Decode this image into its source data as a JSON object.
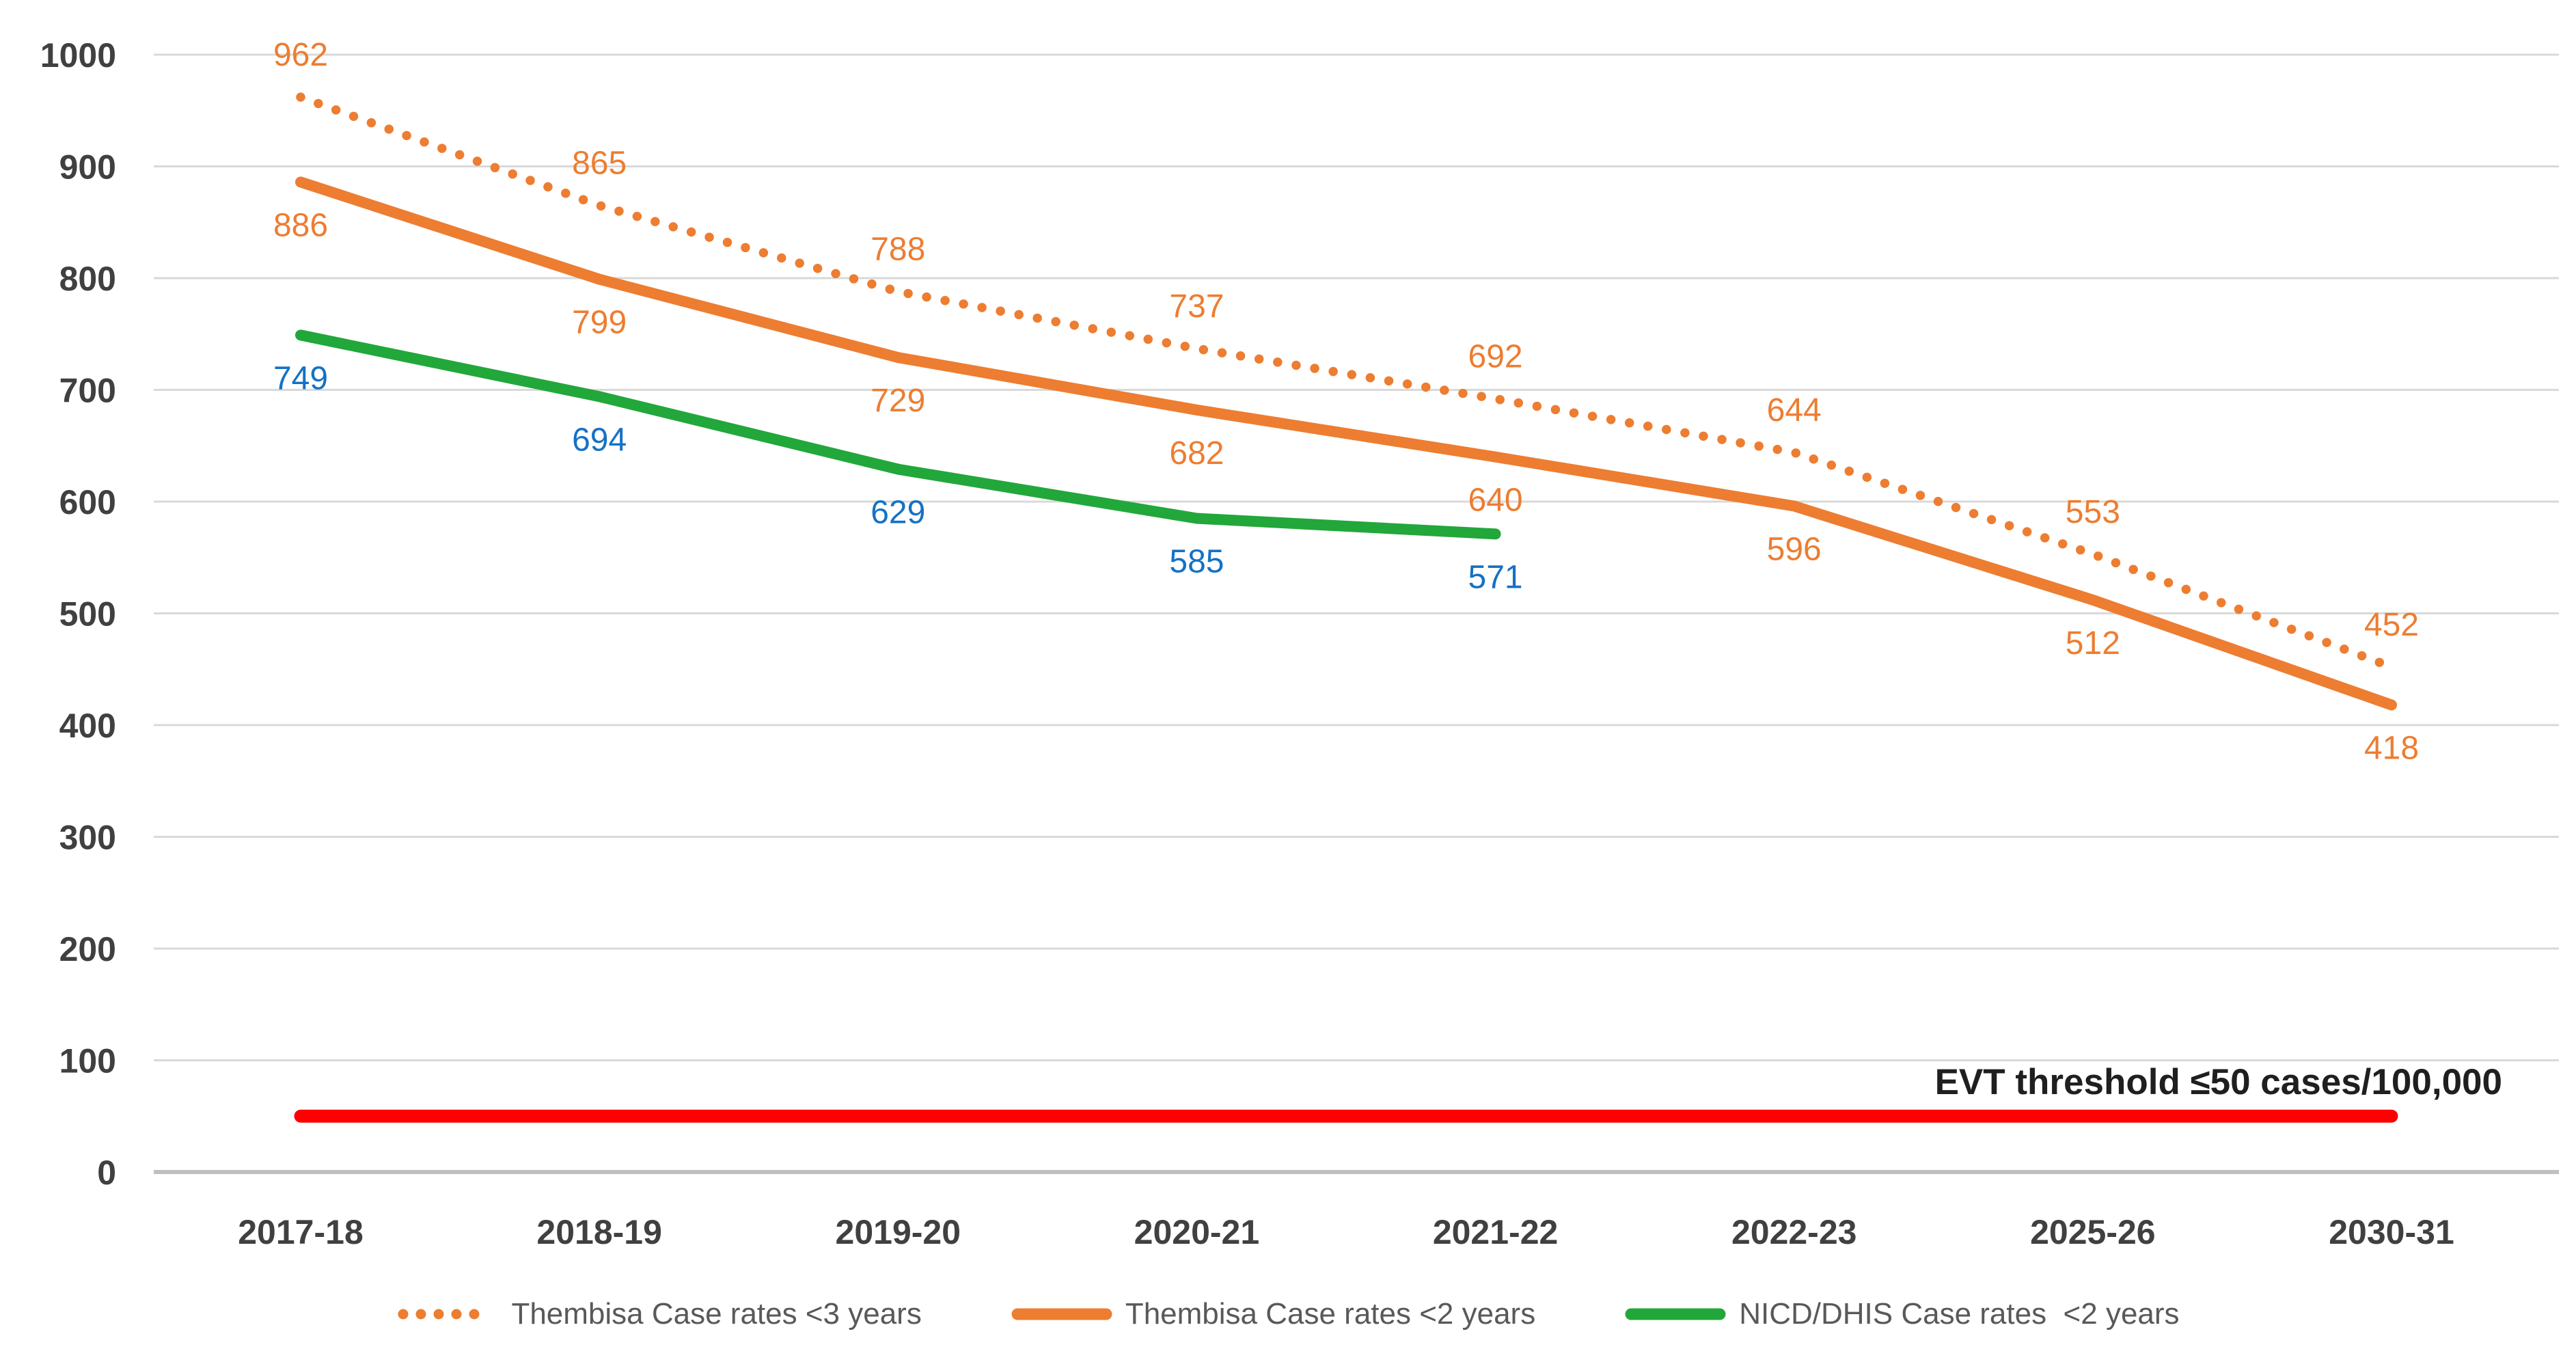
{
  "chart_data": {
    "type": "line",
    "title": "",
    "categories": [
      "2017-18",
      "2018-19",
      "2019-20",
      "2020-21",
      "2021-22",
      "2022-23",
      "2025-26",
      "2030-31"
    ],
    "series": [
      {
        "name": "Thembisa Case rates <3 years",
        "style": "dotted",
        "color": "#ED7D31",
        "label_color": "#ED7D31",
        "label_position": "above",
        "values": [
          962,
          865,
          788,
          737,
          692,
          644,
          553,
          452
        ]
      },
      {
        "name": "Thembisa Case rates <2 years",
        "style": "solid",
        "color": "#ED7D31",
        "label_color": "#ED7D31",
        "label_position": "below",
        "values": [
          886,
          799,
          729,
          682,
          640,
          596,
          512,
          418
        ]
      },
      {
        "name": "NICD/DHIS Case rates  <2 years",
        "style": "solid",
        "color": "#22A73A",
        "label_color": "#1571C5",
        "label_position": "below",
        "values": [
          749,
          694,
          629,
          585,
          571
        ]
      }
    ],
    "threshold": {
      "value": 50,
      "color": "#FE0000",
      "label": "EVT threshold ≤50 cases/100,000"
    },
    "y_axis": {
      "min": 0,
      "max": 1000,
      "step": 100,
      "tick_labels": [
        "0",
        "100",
        "200",
        "300",
        "400",
        "500",
        "600",
        "700",
        "800",
        "900",
        "1000"
      ]
    },
    "grid": true,
    "legend_position": "bottom"
  },
  "styles": {
    "gridline_color": "#D9D9D9",
    "axis_line_color": "#BFBFBF",
    "axis_text_color": "#404040",
    "legend_text_color": "#595959",
    "threshold_text_color": "#1F1F1F",
    "background": "#FFFFFF"
  }
}
